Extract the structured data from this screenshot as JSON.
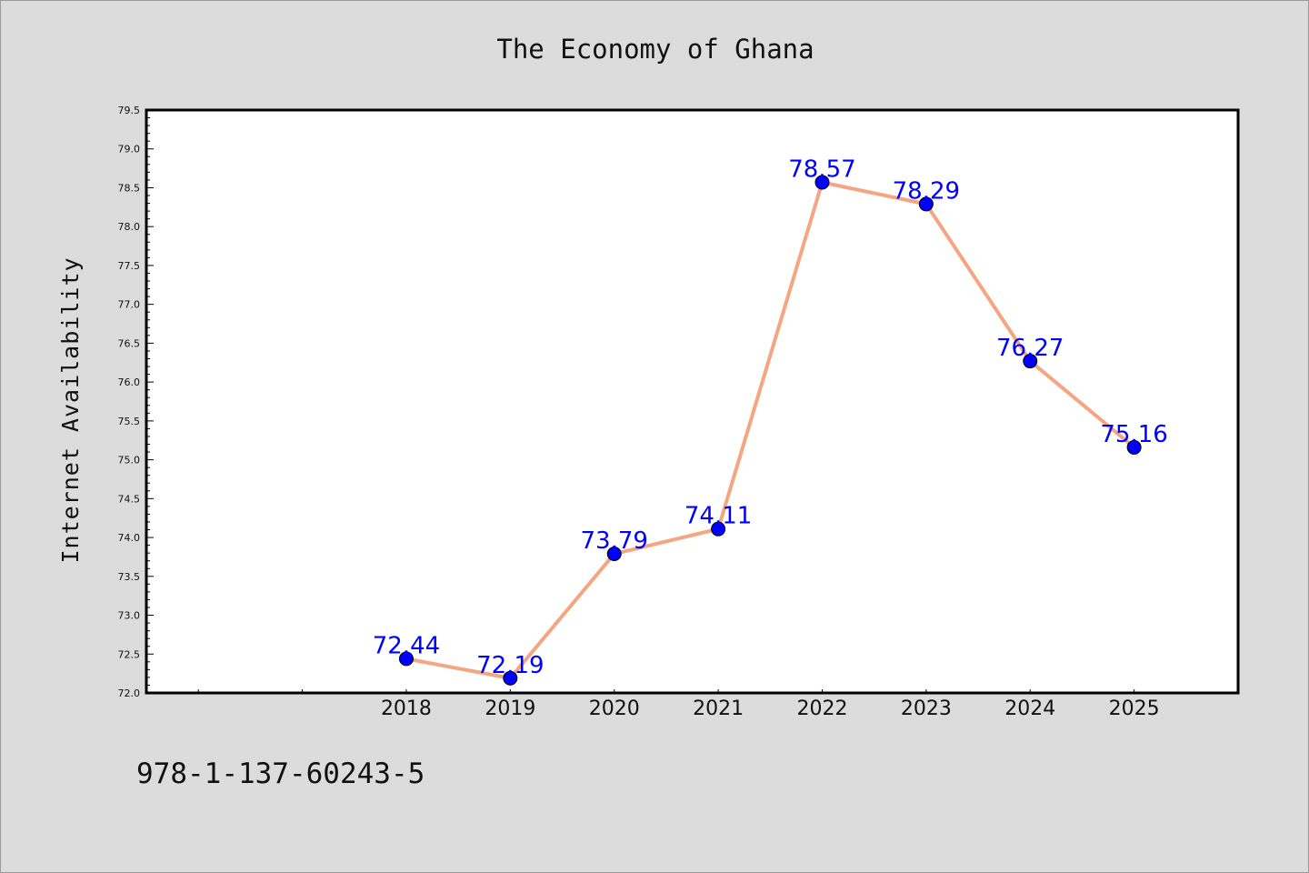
{
  "caption": "978-1-137-60243-5",
  "chart_data": {
    "type": "line",
    "title": "The Economy of Ghana",
    "xlabel": "",
    "ylabel": "Internet Availability",
    "categories": [
      "2018",
      "2019",
      "2020",
      "2021",
      "2022",
      "2023",
      "2024",
      "2025"
    ],
    "x_extra_ticks": 2,
    "series": [
      {
        "values": [
          72.44,
          72.19,
          73.79,
          74.11,
          78.57,
          78.29,
          76.27,
          75.16
        ],
        "data_labels": [
          "72.44",
          "72.19",
          "73.79",
          "74.11",
          "78.57",
          "78.29",
          "76.27",
          "75.16"
        ]
      }
    ],
    "ylim": [
      72.0,
      79.5
    ],
    "yticks": [
      "72.0",
      "72.5",
      "73.0",
      "73.5",
      "74.0",
      "74.5",
      "75.0",
      "75.5",
      "76.0",
      "76.5",
      "77.0",
      "77.5",
      "78.0",
      "78.5",
      "79.0",
      "79.5"
    ],
    "grid": false,
    "legend": "none",
    "colors": {
      "line": "#f4a582",
      "marker": "#0000ff",
      "data_label": "#0000ff",
      "plot_bg": "#ffffff",
      "page_bg": "#dcdcdc"
    }
  }
}
